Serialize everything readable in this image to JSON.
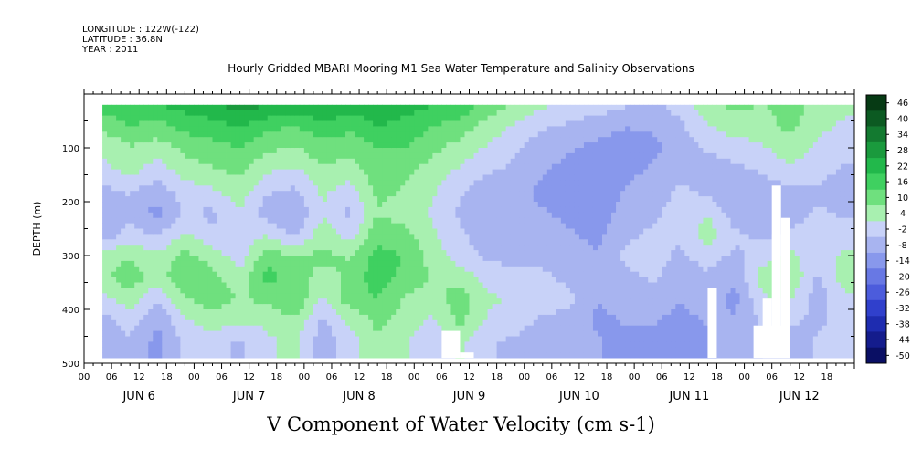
{
  "header": {
    "longitude": "LONGITUDE : 122W(-122)",
    "latitude": "LATITUDE : 36.8N",
    "year": "YEAR : 2011"
  },
  "chart_data": {
    "type": "heatmap",
    "title": "Hourly Gridded MBARI Mooring M1 Sea Water Temperature and Salinity Observations",
    "xlabel": "V Component of Water Velocity (cm s-1)",
    "ylabel": "DEPTH (m)",
    "x_range_hours": [
      0,
      168
    ],
    "data_start_hour": 4,
    "y_range": [
      500,
      0
    ],
    "y_ticks": [
      100,
      200,
      300,
      400,
      500
    ],
    "x_hour_ticks": [
      "00",
      "06",
      "12",
      "18",
      "00",
      "06",
      "12",
      "18",
      "00",
      "06",
      "12",
      "18",
      "00",
      "06",
      "12",
      "18",
      "00",
      "06",
      "12",
      "18",
      "00",
      "06",
      "12",
      "18",
      "00",
      "06",
      "12",
      "18"
    ],
    "x_day_labels": [
      "JUN 6",
      "JUN 7",
      "JUN 8",
      "JUN 9",
      "JUN 10",
      "JUN 11",
      "JUN 12"
    ],
    "colorbar_labels": [
      "46",
      "40",
      "34",
      "28",
      "22",
      "16",
      "10",
      "4",
      "-2",
      "-8",
      "-14",
      "-20",
      "-26",
      "-32",
      "-38",
      "-44",
      "-50"
    ],
    "colorbar_colors": [
      "#063a14",
      "#0c5a22",
      "#137a30",
      "#1a9a3d",
      "#22b84b",
      "#3fd060",
      "#6fe07e",
      "#a8f0b0",
      "#c8d2f8",
      "#a8b4f0",
      "#8898ec",
      "#6878e4",
      "#4c5cdc",
      "#3040cc",
      "#1e2cb0",
      "#141c8c",
      "#0a0f64"
    ],
    "color_range": [
      -50,
      46
    ],
    "profiles": [
      {
        "hour": 5,
        "values": [
          14,
          9,
          2,
          0,
          -6,
          -10,
          -8,
          4,
          6,
          0,
          -6,
          -8
        ]
      },
      {
        "hour": 10,
        "values": [
          16,
          12,
          6,
          3,
          -4,
          -8,
          -2,
          6,
          10,
          4,
          -2,
          -6
        ]
      },
      {
        "hour": 16,
        "values": [
          18,
          10,
          4,
          -2,
          -8,
          -12,
          -6,
          2,
          4,
          -4,
          -10,
          -12
        ]
      },
      {
        "hour": 22,
        "values": [
          20,
          14,
          8,
          4,
          -2,
          -4,
          2,
          8,
          12,
          6,
          0,
          -4
        ]
      },
      {
        "hour": 28,
        "values": [
          22,
          16,
          10,
          6,
          0,
          -6,
          -4,
          4,
          8,
          10,
          4,
          -2
        ]
      },
      {
        "hour": 34,
        "values": [
          26,
          18,
          12,
          8,
          4,
          0,
          -4,
          -2,
          2,
          6,
          2,
          -6
        ]
      },
      {
        "hour": 40,
        "values": [
          24,
          14,
          8,
          2,
          -4,
          -8,
          0,
          10,
          14,
          8,
          2,
          0
        ]
      },
      {
        "hour": 46,
        "values": [
          22,
          12,
          6,
          0,
          -6,
          -10,
          -6,
          6,
          10,
          12,
          6,
          2
        ]
      },
      {
        "hour": 52,
        "values": [
          24,
          16,
          10,
          6,
          2,
          0,
          4,
          8,
          4,
          0,
          -6,
          -8
        ]
      },
      {
        "hour": 58,
        "values": [
          20,
          14,
          8,
          4,
          -2,
          -6,
          -2,
          6,
          8,
          10,
          2,
          -2
        ]
      },
      {
        "hour": 64,
        "values": [
          22,
          18,
          12,
          10,
          8,
          6,
          10,
          14,
          16,
          12,
          8,
          6
        ]
      },
      {
        "hour": 70,
        "values": [
          20,
          16,
          12,
          8,
          6,
          4,
          8,
          12,
          10,
          6,
          4,
          2
        ]
      },
      {
        "hour": 76,
        "values": [
          18,
          12,
          8,
          4,
          2,
          0,
          2,
          4,
          6,
          4,
          0,
          -4
        ]
      },
      {
        "hour": 82,
        "values": [
          16,
          10,
          4,
          0,
          -4,
          -6,
          -4,
          -2,
          4,
          10,
          8,
          2
        ]
      },
      {
        "hour": 88,
        "values": [
          10,
          4,
          0,
          -4,
          -8,
          -10,
          -8,
          -6,
          -2,
          2,
          0,
          -4
        ]
      },
      {
        "hour": 94,
        "values": [
          6,
          0,
          -4,
          -6,
          -8,
          -10,
          -8,
          -6,
          -4,
          0,
          -2,
          -6
        ]
      },
      {
        "hour": 100,
        "values": [
          2,
          -4,
          -8,
          -10,
          -12,
          -10,
          -8,
          -6,
          -4,
          -2,
          -6,
          -8
        ]
      },
      {
        "hour": 106,
        "values": [
          0,
          -6,
          -10,
          -12,
          -14,
          -12,
          -10,
          -8,
          -6,
          -4,
          -6,
          -8
        ]
      },
      {
        "hour": 112,
        "values": [
          -2,
          -8,
          -12,
          -14,
          -16,
          -14,
          -12,
          -10,
          -8,
          -10,
          -12,
          -10
        ]
      },
      {
        "hour": 118,
        "values": [
          -4,
          -10,
          -14,
          -12,
          -10,
          -8,
          -6,
          -4,
          -6,
          -8,
          -10,
          -12
        ]
      },
      {
        "hour": 124,
        "values": [
          -6,
          -10,
          -12,
          -10,
          -8,
          -6,
          -4,
          -2,
          -4,
          -8,
          -10,
          -12
        ]
      },
      {
        "hour": 130,
        "values": [
          -2,
          -6,
          -8,
          -6,
          -4,
          -2,
          -4,
          -6,
          -8,
          -10,
          -12,
          -14
        ]
      },
      {
        "hour": 136,
        "values": [
          4,
          0,
          -4,
          -8,
          -6,
          0,
          4,
          -2,
          -6,
          -8,
          -10,
          -12
        ]
      },
      {
        "hour": 142,
        "values": [
          8,
          4,
          -2,
          -6,
          -10,
          -8,
          -4,
          -6,
          -10,
          -12,
          -10,
          -8
        ]
      },
      {
        "hour": 148,
        "values": [
          6,
          4,
          0,
          -4,
          -8,
          -10,
          -6,
          -2,
          4,
          0,
          -4,
          -6
        ]
      },
      {
        "hour": 154,
        "values": [
          10,
          8,
          4,
          0,
          -6,
          -8,
          -4,
          2,
          6,
          2,
          -4,
          -8
        ]
      },
      {
        "hour": 160,
        "values": [
          4,
          2,
          0,
          -2,
          -6,
          -4,
          0,
          -2,
          -6,
          -8,
          -6,
          -4
        ]
      },
      {
        "hour": 166,
        "values": [
          2,
          0,
          -2,
          -6,
          -8,
          -6,
          -2,
          2,
          4,
          0,
          -2,
          -4
        ]
      }
    ],
    "profile_depths": [
      20,
      60,
      100,
      140,
      180,
      220,
      260,
      300,
      340,
      380,
      420,
      460
    ]
  }
}
